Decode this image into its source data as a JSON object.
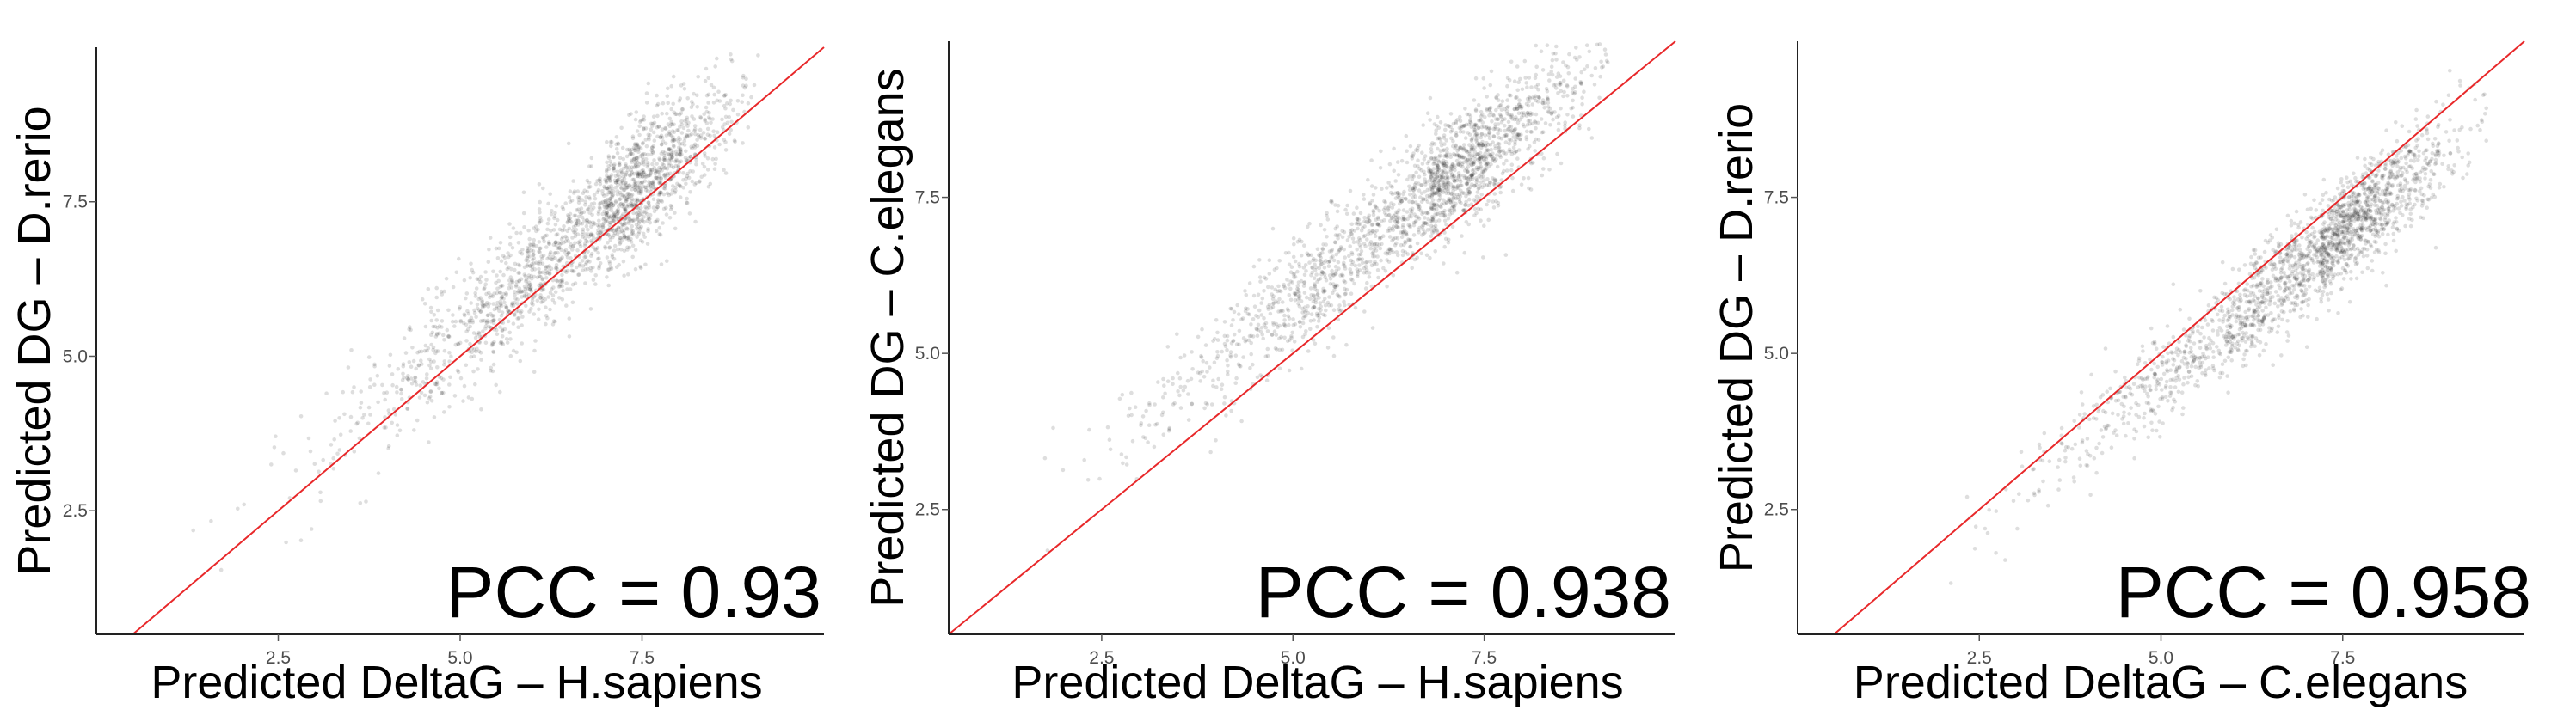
{
  "chart_data": [
    {
      "type": "scatter",
      "xlabel": "Predicted DeltaG – H.sapiens",
      "ylabel": "Predicted DG – D.rerio",
      "annotation": "PCC = 0.93",
      "pcc": 0.93,
      "xlim": [
        0.0,
        10.0
      ],
      "ylim": [
        0.5,
        10.0
      ],
      "xticks": [
        "2.5",
        "5.0",
        "7.5"
      ],
      "yticks": [
        "2.5",
        "5.0",
        "7.5"
      ],
      "reference_line": "y = x",
      "point_cloud": {
        "n": 2000,
        "x_center": 7.0,
        "x_sd": 1.25,
        "x_min": 1.3,
        "x_max": 9.1,
        "slope": 0.98,
        "intercept": 0.45,
        "noise_sd": 0.5
      },
      "colors": {
        "points": "#000000",
        "line": "#e8282a"
      }
    },
    {
      "type": "scatter",
      "xlabel": "Predicted DeltaG – H.sapiens",
      "ylabel": "Predicted DG – C.elegans",
      "annotation": "PCC = 0.938",
      "pcc": 0.938,
      "xlim": [
        0.5,
        10.0
      ],
      "ylim": [
        0.5,
        10.0
      ],
      "xticks": [
        "2.5",
        "5.0",
        "7.5"
      ],
      "yticks": [
        "2.5",
        "5.0",
        "7.5"
      ],
      "reference_line": "y = x",
      "point_cloud": {
        "n": 2000,
        "x_center": 6.8,
        "x_sd": 1.3,
        "x_min": 1.5,
        "x_max": 9.2,
        "slope": 0.95,
        "intercept": 1.1,
        "noise_sd": 0.48
      },
      "colors": {
        "points": "#000000",
        "line": "#e8282a"
      }
    },
    {
      "type": "scatter",
      "xlabel": "Predicted DeltaG – C.elegans",
      "ylabel": "Predicted DG – D.rerio",
      "annotation": "PCC = 0.958",
      "pcc": 0.958,
      "xlim": [
        0.0,
        10.0
      ],
      "ylim": [
        0.5,
        10.0
      ],
      "xticks": [
        "2.5",
        "5.0",
        "7.5"
      ],
      "yticks": [
        "2.5",
        "5.0",
        "7.5"
      ],
      "reference_line": "y = x",
      "point_cloud": {
        "n": 2000,
        "x_center": 7.2,
        "x_sd": 1.3,
        "x_min": 1.2,
        "x_max": 9.5,
        "slope": 0.93,
        "intercept": -0.05,
        "noise_sd": 0.42
      },
      "colors": {
        "points": "#000000",
        "line": "#e8282a"
      }
    }
  ]
}
